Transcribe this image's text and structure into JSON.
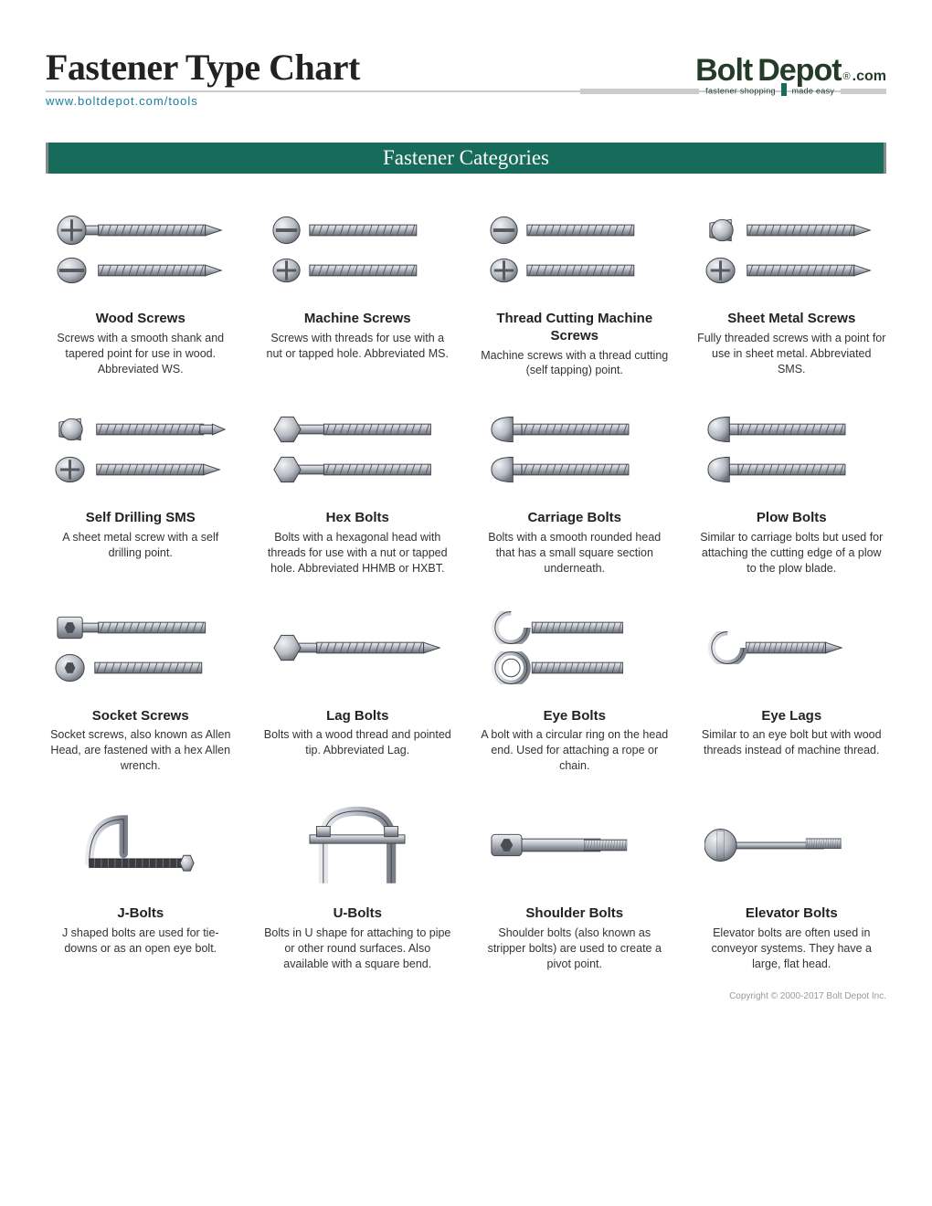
{
  "page": {
    "title": "Fastener Type Chart",
    "url": "www.boltdepot.com/tools",
    "section": "Fastener Categories",
    "copyright": "Copyright © 2000-2017 Bolt Depot Inc."
  },
  "logo": {
    "word1": "Bolt",
    "word2": "Depot",
    "dotcom": ".com",
    "tagline_left": "fastener shopping",
    "tagline_right": "made easy"
  },
  "colors": {
    "teal": "#176b5a",
    "dark": "#253b2a",
    "link": "#1b7da0",
    "rule": "#cccccc",
    "metal_light": "#d8dbe0",
    "metal_mid": "#a6aab3",
    "metal_dark": "#6c7078",
    "outline": "#3f4247"
  },
  "items": [
    {
      "id": "wood",
      "name": "Wood Screws",
      "desc": "Screws with a smooth shank and tapered point for use in wood.  Abbreviated WS.",
      "img": "wood"
    },
    {
      "id": "machine",
      "name": "Machine Screws",
      "desc": "Screws with threads for use with a nut or tapped hole. Abbreviated MS.",
      "img": "machine"
    },
    {
      "id": "threadcut",
      "name": "Thread Cutting Machine Screws",
      "desc": "Machine screws with a thread cutting (self tapping) point.",
      "img": "machine"
    },
    {
      "id": "sms",
      "name": "Sheet Metal Screws",
      "desc": "Fully threaded screws with a point for use in sheet metal. Abbreviated SMS.",
      "img": "sms"
    },
    {
      "id": "selfdrill",
      "name": "Self Drilling SMS",
      "desc": "A sheet metal screw with a self drilling point.",
      "img": "selfdrill"
    },
    {
      "id": "hex",
      "name": "Hex Bolts",
      "desc": "Bolts with a hexagonal head with threads for use with a nut or tapped hole.  Abbreviated HHMB or HXBT.",
      "img": "hex"
    },
    {
      "id": "carriage",
      "name": "Carriage Bolts",
      "desc": "Bolts with a smooth rounded head that has a small square section underneath.",
      "img": "carriage"
    },
    {
      "id": "plow",
      "name": "Plow Bolts",
      "desc": "Similar to carriage bolts but used for attaching the cutting edge of a plow to the plow blade.",
      "img": "carriage"
    },
    {
      "id": "socket",
      "name": "Socket Screws",
      "desc": "Socket screws, also known as Allen Head, are fastened with a hex Allen wrench.",
      "img": "socket"
    },
    {
      "id": "lag",
      "name": "Lag Bolts",
      "desc": "Bolts with a wood thread and pointed tip. Abbreviated Lag.",
      "img": "lag"
    },
    {
      "id": "eyebolt",
      "name": "Eye Bolts",
      "desc": "A bolt with a circular ring on the head end. Used for attaching a rope or chain.",
      "img": "eyebolt"
    },
    {
      "id": "eyelag",
      "name": "Eye Lags",
      "desc": "Similar to an eye bolt but with wood threads instead of machine thread.",
      "img": "eyelag"
    },
    {
      "id": "jbolt",
      "name": "J-Bolts",
      "desc": "J shaped bolts are used for tie-downs or as an open eye bolt.",
      "img": "jbolt"
    },
    {
      "id": "ubolt",
      "name": "U-Bolts",
      "desc": "Bolts in U shape for attaching to pipe or other round surfaces. Also available with a square bend.",
      "img": "ubolt"
    },
    {
      "id": "shoulder",
      "name": "Shoulder Bolts",
      "desc": "Shoulder bolts (also known as stripper bolts) are used to create a pivot point.",
      "img": "shoulder"
    },
    {
      "id": "elevator",
      "name": "Elevator Bolts",
      "desc": "Elevator bolts are often used in conveyor systems. They have a large, flat head.",
      "img": "elevator"
    }
  ]
}
